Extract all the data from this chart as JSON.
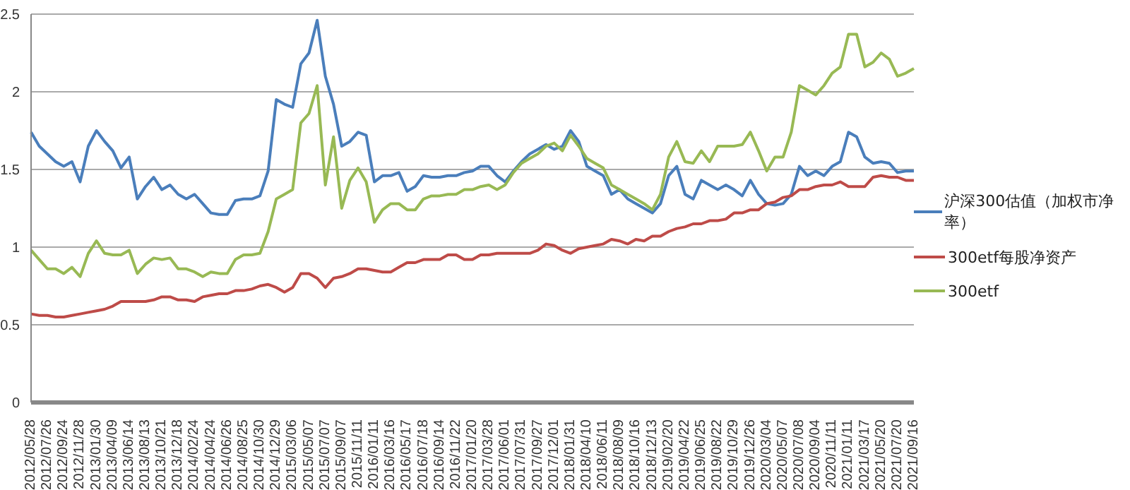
{
  "chart_data": {
    "type": "line",
    "categories": [
      "2012/05/28",
      null,
      "2012/07/26",
      null,
      "2012/09/24",
      null,
      "2012/11/28",
      null,
      "2013/01/30",
      null,
      "2013/04/09",
      null,
      "2013/06/14",
      null,
      "2013/08/13",
      null,
      "2013/10/21",
      null,
      "2013/12/18",
      null,
      "2014/02/24",
      null,
      "2014/04/24",
      null,
      "2014/06/26",
      null,
      "2014/08/25",
      null,
      "2014/10/30",
      null,
      "2014/12/29",
      null,
      "2015/03/06",
      null,
      "2015/05/07",
      null,
      "2015/07/07",
      null,
      "2015/09/07",
      null,
      "2015/11/11",
      null,
      "2016/01/11",
      null,
      "2016/03/16",
      null,
      "2016/05/17",
      null,
      "2016/07/18",
      null,
      "2016/09/14",
      null,
      "2016/11/22",
      null,
      "2017/01/20",
      null,
      "2017/03/28",
      null,
      "2017/06/01",
      null,
      "2017/07/31",
      null,
      "2017/09/27",
      null,
      "2017/12/01",
      null,
      "2018/01/31",
      null,
      "2018/04/10",
      null,
      "2018/06/11",
      null,
      "2018/08/09",
      null,
      "2018/10/16",
      null,
      "2018/12/13",
      null,
      "2019/02/20",
      null,
      "2019/04/22",
      null,
      "2019/06/25",
      null,
      "2019/08/22",
      null,
      "2019/10/29",
      null,
      "2019/12/26",
      null,
      "2020/03/04",
      null,
      "2020/05/07",
      null,
      "2020/07/08",
      null,
      "2020/09/04",
      null,
      "2020/11/11",
      null,
      "2021/01/11",
      null,
      "2021/03/17",
      null,
      "2021/05/20",
      null,
      "2021/07/20",
      null,
      "2021/09/16"
    ],
    "series": [
      {
        "name": "沪深300估值（加权市净率）",
        "color": "#4a7ebb",
        "values": [
          1.74,
          1.65,
          1.6,
          1.55,
          1.52,
          1.55,
          1.42,
          1.65,
          1.75,
          1.68,
          1.62,
          1.51,
          1.58,
          1.31,
          1.39,
          1.45,
          1.37,
          1.4,
          1.34,
          1.31,
          1.34,
          1.28,
          1.22,
          1.21,
          1.21,
          1.3,
          1.31,
          1.31,
          1.33,
          1.49,
          1.95,
          1.92,
          1.9,
          2.18,
          2.25,
          2.46,
          2.1,
          1.92,
          1.65,
          1.68,
          1.74,
          1.72,
          1.42,
          1.46,
          1.46,
          1.48,
          1.36,
          1.39,
          1.46,
          1.45,
          1.45,
          1.46,
          1.46,
          1.48,
          1.49,
          1.52,
          1.52,
          1.46,
          1.42,
          1.49,
          1.55,
          1.6,
          1.63,
          1.66,
          1.63,
          1.65,
          1.75,
          1.68,
          1.52,
          1.49,
          1.46,
          1.34,
          1.37,
          1.31,
          1.28,
          1.25,
          1.22,
          1.28,
          1.46,
          1.52,
          1.34,
          1.31,
          1.43,
          1.4,
          1.37,
          1.4,
          1.37,
          1.33,
          1.43,
          1.34,
          1.28,
          1.27,
          1.28,
          1.34,
          1.52,
          1.46,
          1.49,
          1.46,
          1.52,
          1.55,
          1.74,
          1.71,
          1.58,
          1.54,
          1.55,
          1.54,
          1.48,
          1.49,
          1.49
        ]
      },
      {
        "name": "300etf每股净资产",
        "color": "#be4b48",
        "values": [
          0.57,
          0.56,
          0.56,
          0.55,
          0.55,
          0.56,
          0.57,
          0.58,
          0.59,
          0.6,
          0.62,
          0.65,
          0.65,
          0.65,
          0.65,
          0.66,
          0.68,
          0.68,
          0.66,
          0.66,
          0.65,
          0.68,
          0.69,
          0.7,
          0.7,
          0.72,
          0.72,
          0.73,
          0.75,
          0.76,
          0.74,
          0.71,
          0.74,
          0.83,
          0.83,
          0.8,
          0.74,
          0.8,
          0.81,
          0.83,
          0.86,
          0.86,
          0.85,
          0.84,
          0.84,
          0.87,
          0.9,
          0.9,
          0.92,
          0.92,
          0.92,
          0.95,
          0.95,
          0.92,
          0.92,
          0.95,
          0.95,
          0.96,
          0.96,
          0.96,
          0.96,
          0.96,
          0.98,
          1.02,
          1.01,
          0.98,
          0.96,
          0.99,
          1.0,
          1.01,
          1.02,
          1.05,
          1.04,
          1.02,
          1.05,
          1.04,
          1.07,
          1.07,
          1.1,
          1.12,
          1.13,
          1.15,
          1.15,
          1.17,
          1.17,
          1.18,
          1.22,
          1.22,
          1.24,
          1.24,
          1.28,
          1.29,
          1.32,
          1.33,
          1.37,
          1.37,
          1.39,
          1.4,
          1.4,
          1.42,
          1.39,
          1.39,
          1.39,
          1.45,
          1.46,
          1.45,
          1.45,
          1.43,
          1.43
        ]
      },
      {
        "name": "300etf",
        "color": "#98b954",
        "values": [
          0.98,
          0.92,
          0.86,
          0.86,
          0.83,
          0.87,
          0.81,
          0.96,
          1.04,
          0.96,
          0.95,
          0.95,
          0.98,
          0.83,
          0.89,
          0.93,
          0.92,
          0.93,
          0.86,
          0.86,
          0.84,
          0.81,
          0.84,
          0.83,
          0.83,
          0.92,
          0.95,
          0.95,
          0.96,
          1.1,
          1.31,
          1.34,
          1.37,
          1.8,
          1.86,
          2.04,
          1.4,
          1.71,
          1.25,
          1.43,
          1.51,
          1.42,
          1.16,
          1.24,
          1.28,
          1.28,
          1.24,
          1.24,
          1.31,
          1.33,
          1.33,
          1.34,
          1.34,
          1.37,
          1.37,
          1.39,
          1.4,
          1.37,
          1.4,
          1.48,
          1.54,
          1.57,
          1.6,
          1.65,
          1.67,
          1.62,
          1.72,
          1.65,
          1.57,
          1.54,
          1.51,
          1.4,
          1.37,
          1.34,
          1.31,
          1.28,
          1.24,
          1.34,
          1.58,
          1.68,
          1.55,
          1.54,
          1.62,
          1.55,
          1.65,
          1.65,
          1.65,
          1.66,
          1.74,
          1.62,
          1.49,
          1.58,
          1.58,
          1.74,
          2.04,
          2.01,
          1.98,
          2.04,
          2.12,
          2.16,
          2.37,
          2.37,
          2.16,
          2.19,
          2.25,
          2.21,
          2.1,
          2.12,
          2.15
        ]
      }
    ],
    "ylim": [
      0,
      2.5
    ],
    "yticks": [
      0,
      0.5,
      1,
      1.5,
      2,
      2.5
    ],
    "grid": "y",
    "legend": "right",
    "marker": "none",
    "line_style": "solid"
  }
}
